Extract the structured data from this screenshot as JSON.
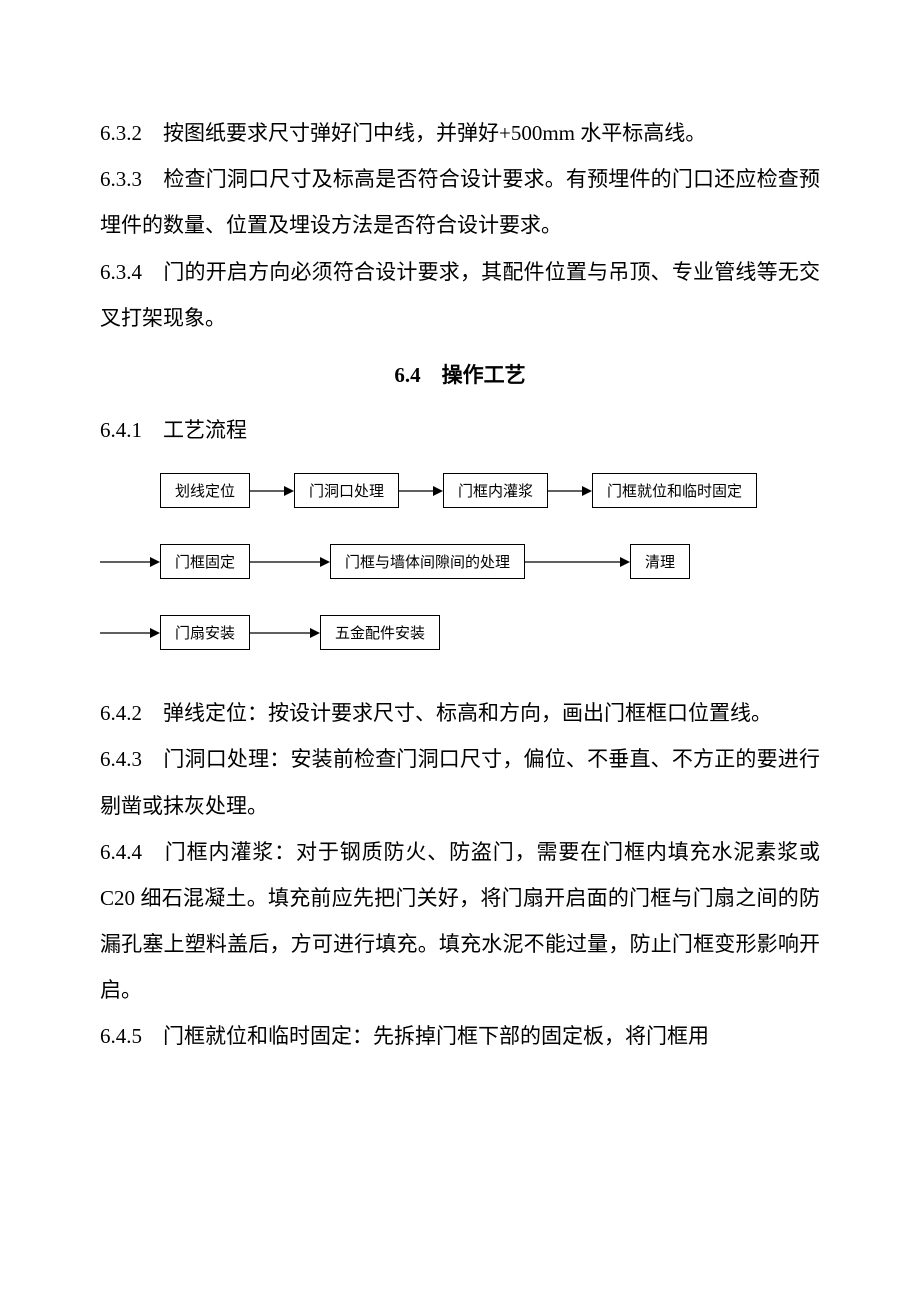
{
  "paragraphs": {
    "p632": "6.3.2　按图纸要求尺寸弹好门中线，并弹好+500mm 水平标高线。",
    "p633": "6.3.3　检查门洞口尺寸及标高是否符合设计要求。有预埋件的门口还应检查预埋件的数量、位置及埋设方法是否符合设计要求。",
    "p634": "6.3.4　门的开启方向必须符合设计要求，其配件位置与吊顶、专业管线等无交叉打架现象。",
    "section64": "6.4　操作工艺",
    "p641": "6.4.1　工艺流程",
    "p642": "6.4.2　弹线定位：按设计要求尺寸、标高和方向，画出门框框口位置线。",
    "p643": "6.4.3　门洞口处理：安装前检查门洞口尺寸，偏位、不垂直、不方正的要进行剔凿或抹灰处理。",
    "p644": "6.4.4　门框内灌浆：对于钢质防火、防盗门，需要在门框内填充水泥素浆或 C20 细石混凝土。填充前应先把门关好，将门扇开启面的门框与门扇之间的防漏孔塞上塑料盖后，方可进行填充。填充水泥不能过量，防止门框变形影响开启。",
    "p645": "6.4.5　门框就位和临时固定：先拆掉门框下部的固定板，将门框用"
  },
  "flowchart": {
    "type": "flowchart",
    "box_border_color": "#000000",
    "box_bg_color": "#ffffff",
    "box_fontsize": 15,
    "arrow_color": "#000000",
    "rows": [
      {
        "leading_arrow": false,
        "boxes": [
          "划线定位",
          "门洞口处理",
          "门框内灌浆",
          "门框就位和临时固定"
        ],
        "arrow_widths": [
          44,
          44,
          44
        ]
      },
      {
        "leading_arrow": true,
        "leading_arrow_width": 60,
        "boxes": [
          "门框固定",
          "门框与墙体间隙间的处理",
          "清理"
        ],
        "arrow_widths": [
          80,
          105
        ]
      },
      {
        "leading_arrow": true,
        "leading_arrow_width": 60,
        "boxes": [
          "门扇安装",
          "五金配件安装"
        ],
        "arrow_widths": [
          70
        ]
      }
    ]
  },
  "colors": {
    "text": "#000000",
    "background": "#ffffff"
  }
}
